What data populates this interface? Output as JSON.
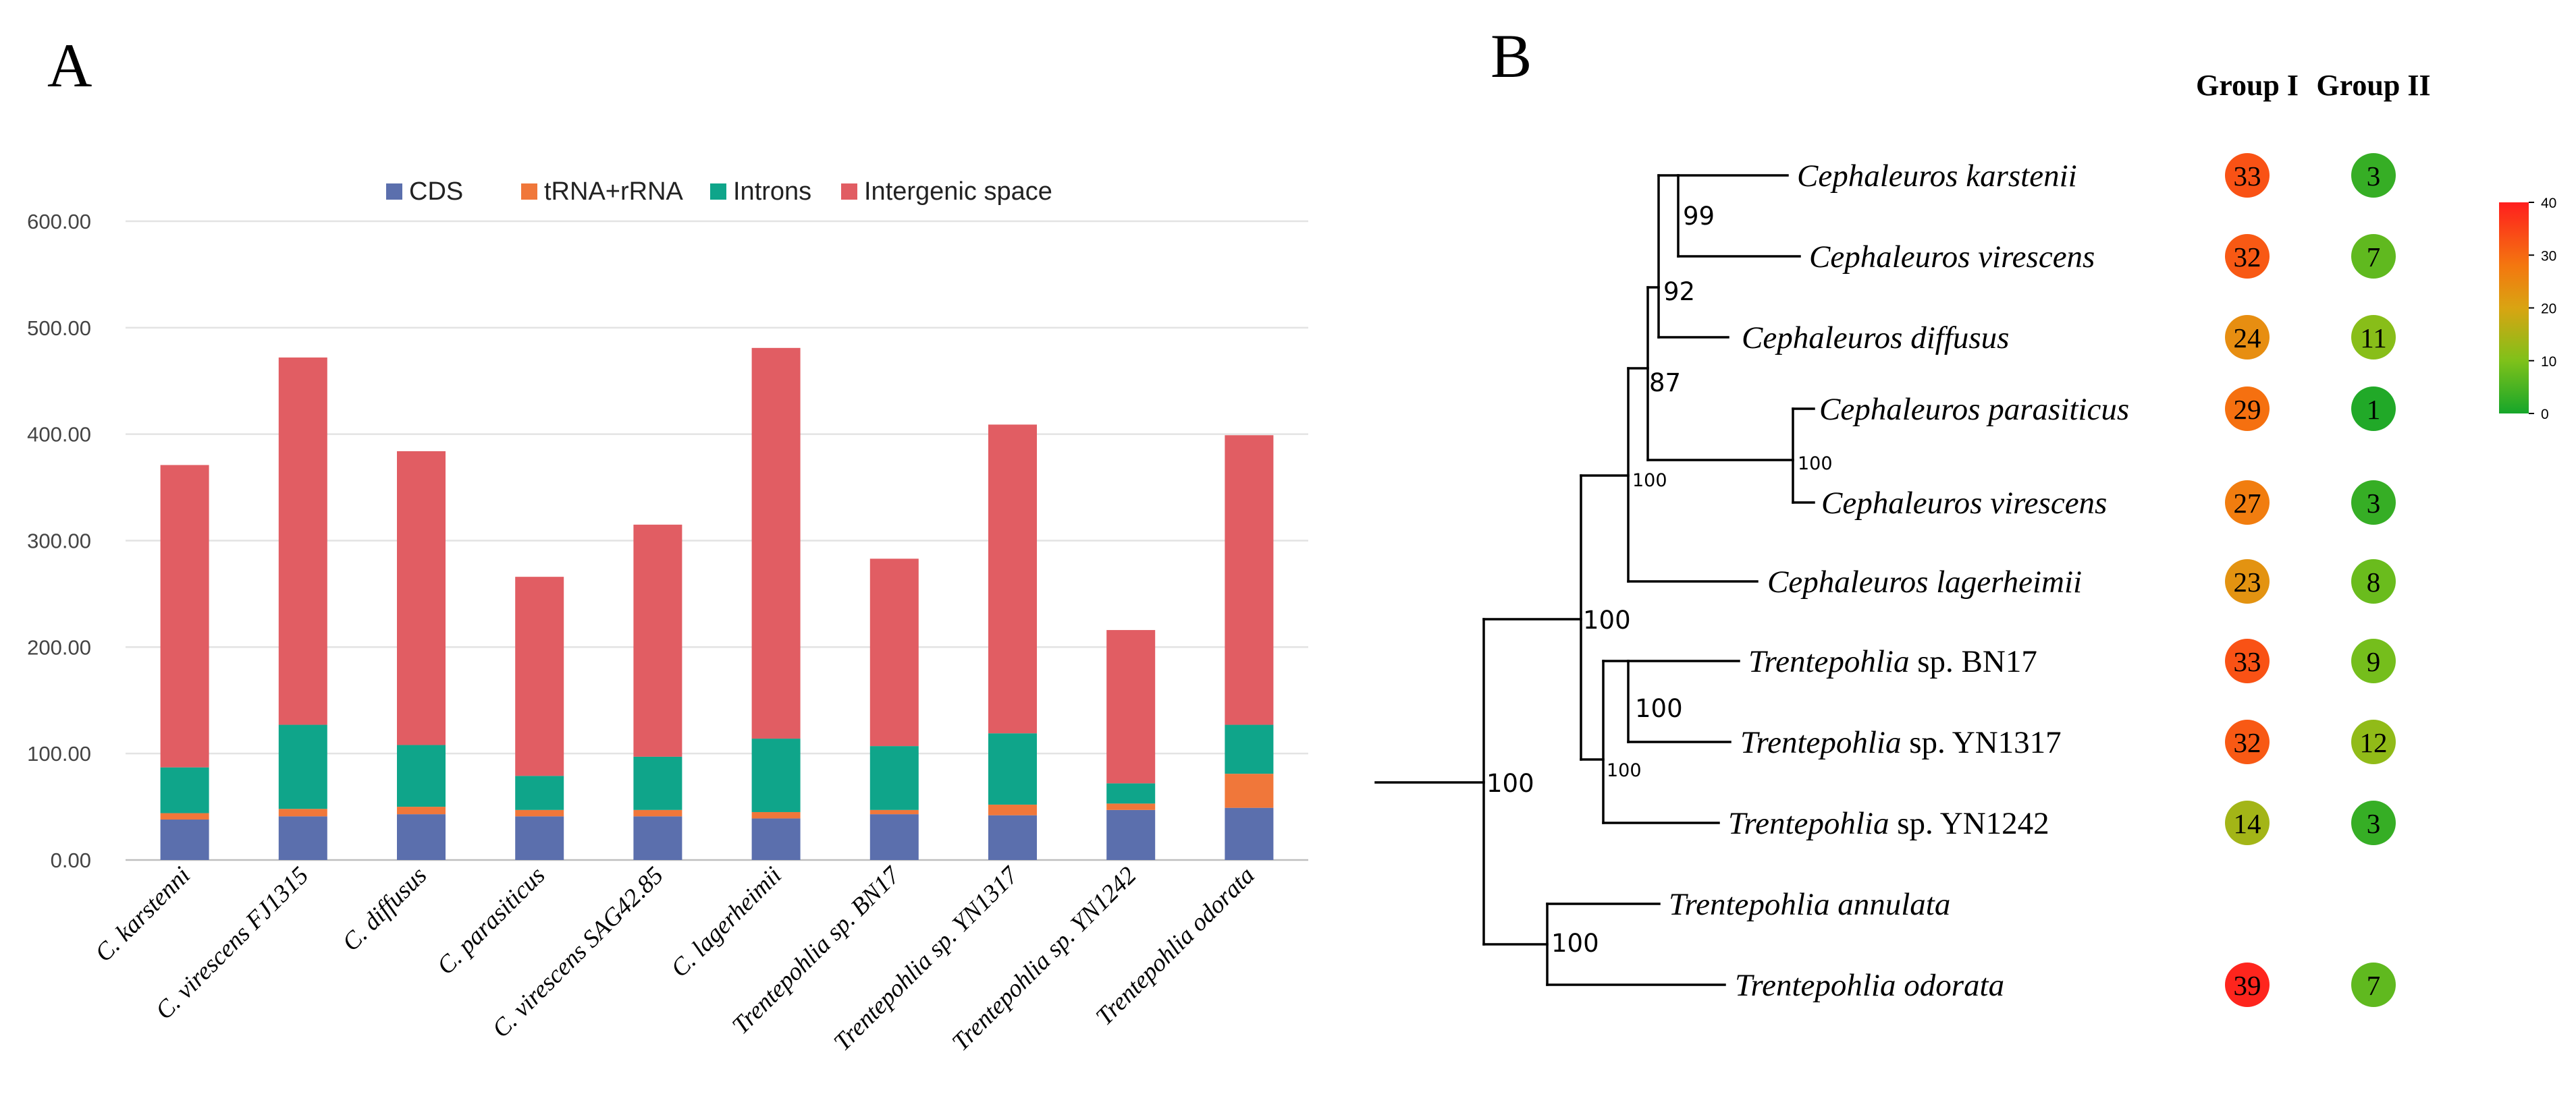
{
  "panels": {
    "a_label": "A",
    "b_label": "B"
  },
  "colors": {
    "cds": "#5b6fad",
    "trna_rrna": "#f0773a",
    "introns": "#0fa58a",
    "intergenic": "#e15d63"
  },
  "chart_data": {
    "type": "bar",
    "stacked": true,
    "categories": [
      "C. karstenni",
      "C. virescens FJ1315",
      "C. diffusus",
      "C. parasiticus",
      "C. virescens SAG42.85",
      "C. lagerheimii",
      "Trentepohlia sp. BN17",
      "Trentepohlia sp. YN1317",
      "Trentepohlia sp. YN1242",
      "Trentepohlia odorata"
    ],
    "series": [
      {
        "name": "CDS",
        "values": [
          38,
          41,
          43,
          41,
          41,
          39,
          43,
          42,
          47,
          49
        ]
      },
      {
        "name": "tRNA+rRNA",
        "values": [
          6,
          7,
          7,
          6,
          6,
          6,
          4,
          10,
          6,
          32
        ]
      },
      {
        "name": "Introns",
        "values": [
          43,
          79,
          58,
          32,
          50,
          69,
          60,
          67,
          19,
          46
        ]
      },
      {
        "name": "Intergenic space",
        "values": [
          284,
          345,
          276,
          187,
          218,
          367,
          176,
          290,
          144,
          272
        ]
      }
    ],
    "ylim": [
      0,
      600
    ],
    "yticks": [
      "0.00",
      "100.00",
      "200.00",
      "300.00",
      "400.00",
      "500.00",
      "600.00"
    ],
    "legend_position": "top",
    "grid": true
  },
  "tree": {
    "group_headers": [
      "Group I",
      "Group II"
    ],
    "taxa": [
      {
        "genus": "Cephaleuros",
        "epithet": "karstenii",
        "group1": "33",
        "group2": "3"
      },
      {
        "genus": "Cephaleuros",
        "epithet": "virescens",
        "group1": "32",
        "group2": "7"
      },
      {
        "genus": "Cephaleuros",
        "epithet": "diffusus",
        "group1": "24",
        "group2": "11"
      },
      {
        "genus": "Cephaleuros",
        "epithet": "parasiticus",
        "group1": "29",
        "group2": "1"
      },
      {
        "genus": "Cephaleuros",
        "epithet": "virescens",
        "group1": "27",
        "group2": "3"
      },
      {
        "genus": "Cephaleuros",
        "epithet": "lagerheimii",
        "group1": "23",
        "group2": "8"
      },
      {
        "genus": "Trentepohlia",
        "epithet": "sp. BN17",
        "group1": "33",
        "group2": "9"
      },
      {
        "genus": "Trentepohlia",
        "epithet": "sp. YN1317",
        "group1": "32",
        "group2": "12"
      },
      {
        "genus": "Trentepohlia",
        "epithet": "sp. YN1242",
        "group1": "14",
        "group2": "3"
      },
      {
        "genus": "Trentepohlia",
        "epithet": "annulata",
        "group1": null,
        "group2": null
      },
      {
        "genus": "Trentepohlia",
        "epithet": "odorata",
        "group1": "39",
        "group2": "7"
      }
    ],
    "supports": [
      "99",
      "92",
      "87",
      "100",
      "100",
      "100",
      "100",
      "100",
      "100"
    ],
    "color_scale": {
      "min": 0,
      "max": 40,
      "ticks": [
        "40",
        "30",
        "20",
        "10",
        "0"
      ]
    }
  }
}
